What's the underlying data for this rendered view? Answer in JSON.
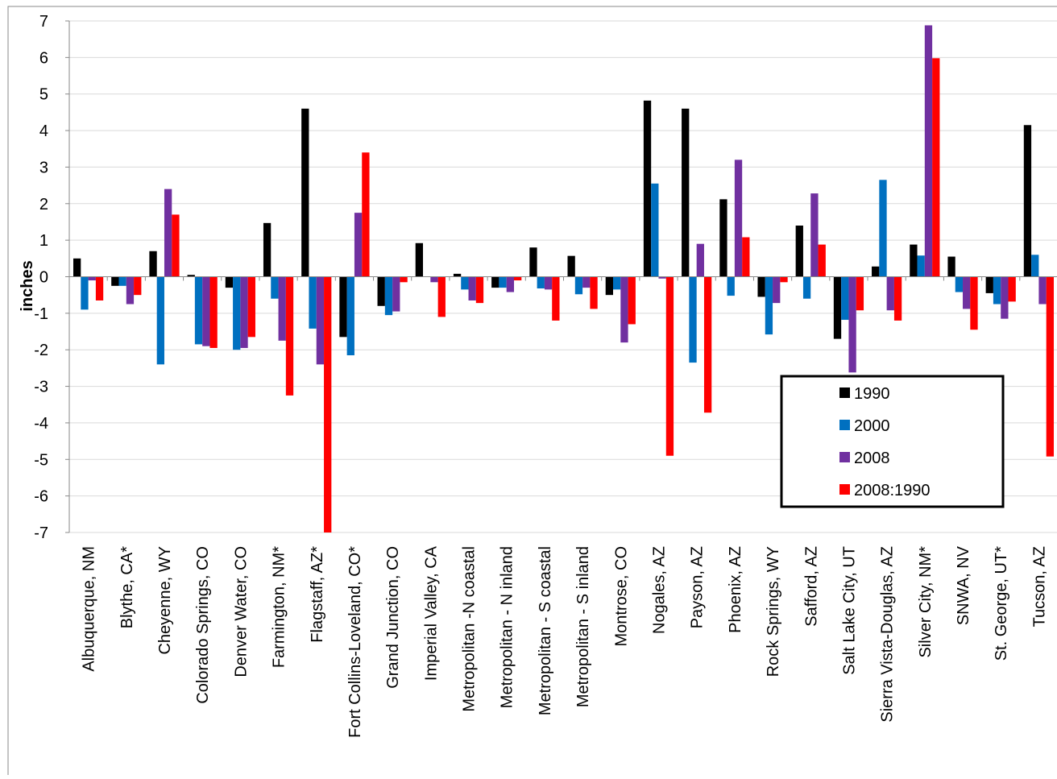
{
  "chart_data": {
    "type": "bar",
    "y_label": "inches",
    "categories": [
      "Albuquerque, NM",
      "Blythe, CA*",
      "Cheyenne, WY",
      "Colorado Springs, CO",
      "Denver Water, CO",
      "Farmington, NM*",
      "Flagstaff, AZ*",
      "Fort Collins-Loveland, CO*",
      "Grand Junction, CO",
      "Imperial Valley, CA",
      "Metropolitan -N coastal",
      "Metropolitan - N inland",
      "Metropolitan - S coastal",
      "Metropolitan - S inland",
      "Montrose, CO",
      "Nogales, AZ",
      "Payson, AZ",
      "Phoenix, AZ",
      "Rock Springs, WY",
      "Safford, AZ",
      "Salt Lake City, UT",
      "Sierra Vista-Douglas, AZ",
      "Silver City, NM*",
      "SNWA, NV",
      "St. George, UT*",
      "Tucson, AZ"
    ],
    "series": [
      {
        "name": "1990",
        "color": "#000000",
        "values": [
          0.5,
          -0.25,
          0.7,
          0.05,
          -0.3,
          1.47,
          4.6,
          -1.65,
          -0.8,
          0.92,
          0.08,
          -0.3,
          0.8,
          0.57,
          -0.5,
          4.82,
          4.6,
          2.12,
          -0.55,
          1.4,
          -1.7,
          0.28,
          0.88,
          0.55,
          -0.45,
          4.15
        ]
      },
      {
        "name": "2000",
        "color": "#0070c0",
        "values": [
          -0.9,
          -0.25,
          -2.4,
          -1.85,
          -2.0,
          -0.6,
          -1.42,
          -2.15,
          -1.05,
          0,
          -0.35,
          -0.3,
          -0.32,
          -0.48,
          -0.35,
          2.55,
          -2.35,
          -0.52,
          -1.58,
          -0.6,
          -1.18,
          2.65,
          0.58,
          -0.42,
          -0.75,
          0.6
        ]
      },
      {
        "name": "2008",
        "color": "#7030a0",
        "values": [
          -0.1,
          -0.75,
          2.4,
          -1.9,
          -1.95,
          -1.75,
          -2.4,
          1.75,
          -0.95,
          -0.15,
          -0.65,
          -0.42,
          -0.35,
          -0.3,
          -1.8,
          -0.05,
          0.9,
          3.2,
          -0.72,
          2.28,
          -2.62,
          -0.92,
          6.88,
          -0.88,
          -1.15,
          -0.75
        ]
      },
      {
        "name": "2008:1990",
        "color": "#ff0000",
        "values": [
          -0.65,
          -0.5,
          1.7,
          -1.95,
          -1.65,
          -3.25,
          -7.5,
          3.4,
          -0.15,
          -1.1,
          -0.72,
          -0.1,
          -1.2,
          -0.88,
          -1.3,
          -4.9,
          -3.72,
          1.08,
          -0.15,
          0.88,
          -0.92,
          -1.2,
          5.98,
          -1.45,
          -0.68,
          -4.92
        ]
      }
    ],
    "ylim": [
      -7,
      7
    ],
    "yticks": [
      -7,
      -6,
      -5,
      -4,
      -3,
      -2,
      -1,
      0,
      1,
      2,
      3,
      4,
      5,
      6,
      7
    ],
    "grid": true,
    "legend_position": "lower right"
  }
}
